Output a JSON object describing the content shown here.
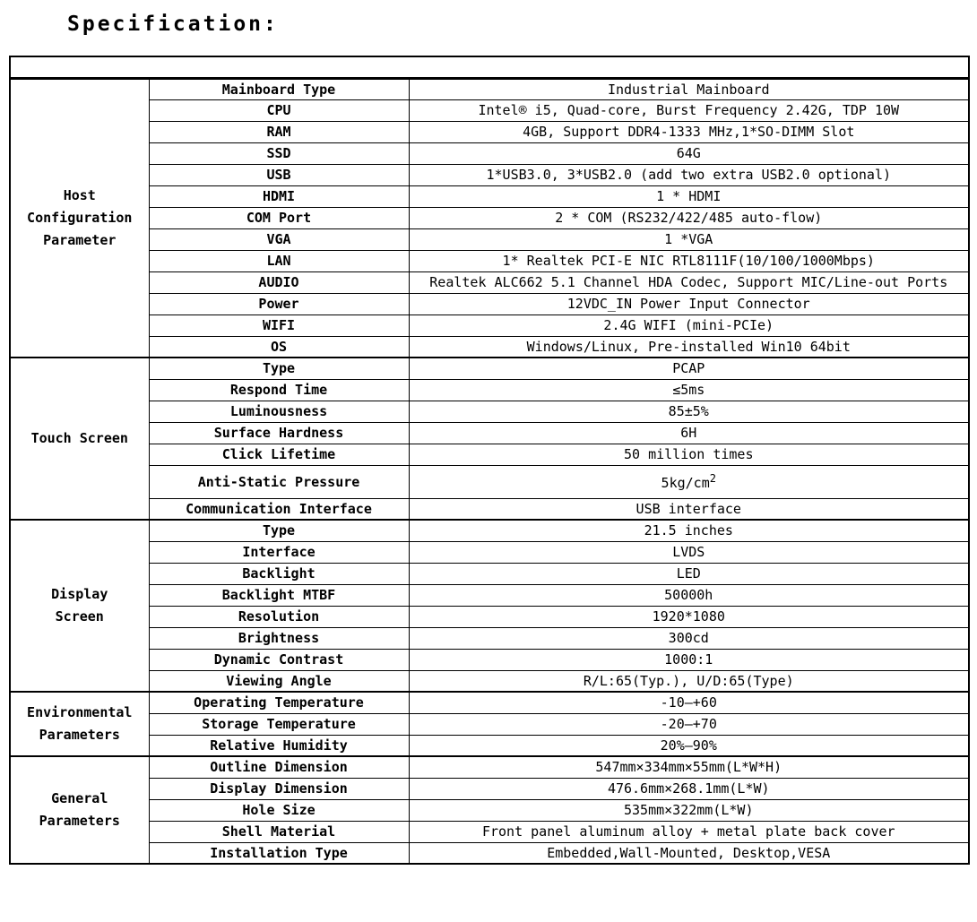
{
  "page_title": "Specification:",
  "table": {
    "sections": [
      {
        "category": "Host Configuration Parameter",
        "category_lines": [
          "Host",
          "Configuration",
          "Parameter"
        ],
        "rows": [
          {
            "param": "Mainboard Type",
            "value": "Industrial Mainboard"
          },
          {
            "param": "CPU",
            "value": "Intel® i5, Quad-core, Burst Frequency 2.42G, TDP 10W"
          },
          {
            "param": "RAM",
            "value": "4GB, Support DDR4-1333 MHz,1*SO-DIMM Slot"
          },
          {
            "param": "SSD",
            "value": "64G"
          },
          {
            "param": "USB",
            "value": "1*USB3.0, 3*USB2.0 (add two extra USB2.0 optional)"
          },
          {
            "param": "HDMI",
            "value": "1 * HDMI"
          },
          {
            "param": "COM Port",
            "value": "2 * COM (RS232/422/485 auto-flow)"
          },
          {
            "param": "VGA",
            "value": "1 *VGA"
          },
          {
            "param": "LAN",
            "value": "1* Realtek PCI-E NIC RTL8111F(10/100/1000Mbps)"
          },
          {
            "param": "AUDIO",
            "value": "Realtek ALC662 5.1 Channel HDA Codec, Support MIC/Line-out Ports"
          },
          {
            "param": "Power",
            "value": "12VDC_IN Power Input Connector"
          },
          {
            "param": "WIFI",
            "value": "2.4G WIFI (mini-PCIe)"
          },
          {
            "param": "OS",
            "value": "Windows/Linux, Pre-installed Win10 64bit"
          }
        ]
      },
      {
        "category": "Touch Screen",
        "category_lines": [
          "Touch Screen"
        ],
        "rows": [
          {
            "param": "Type",
            "value": "PCAP"
          },
          {
            "param": "Respond Time",
            "value": "≤5ms"
          },
          {
            "param": "Luminousness",
            "value": "85±5%"
          },
          {
            "param": "Surface Hardness",
            "value": "6H"
          },
          {
            "param": "Click Lifetime",
            "value": "50 million times"
          },
          {
            "param": "Anti-Static Pressure",
            "value": "5kg/cm",
            "value_sup": "2",
            "tall": true
          },
          {
            "param": "Communication Interface",
            "value": "USB interface"
          }
        ]
      },
      {
        "category": "Display Screen",
        "category_lines": [
          "Display",
          "Screen"
        ],
        "rows": [
          {
            "param": "Type",
            "value": "21.5 inches"
          },
          {
            "param": "Interface",
            "value": "LVDS"
          },
          {
            "param": "Backlight",
            "value": "LED"
          },
          {
            "param": "Backlight MTBF",
            "value": "50000h"
          },
          {
            "param": "Resolution",
            "value": "1920*1080"
          },
          {
            "param": "Brightness",
            "value": "300cd"
          },
          {
            "param": "Dynamic Contrast",
            "value": "1000:1"
          },
          {
            "param": "Viewing Angle",
            "value": "R/L:65(Typ.), U/D:65(Type)"
          }
        ]
      },
      {
        "category": "Environmental Parameters",
        "category_lines": [
          "Environmental",
          "Parameters"
        ],
        "rows": [
          {
            "param": "Operating Temperature",
            "value": "-10—+60"
          },
          {
            "param": "Storage Temperature",
            "value": "-20—+70"
          },
          {
            "param": "Relative Humidity",
            "value": "20%—90%"
          }
        ]
      },
      {
        "category": "General Parameters",
        "category_lines": [
          "General",
          "Parameters"
        ],
        "rows": [
          {
            "param": "Outline Dimension",
            "value": "547mm×334mm×55mm(L*W*H)"
          },
          {
            "param": "Display Dimension",
            "value": "476.6mm×268.1mm(L*W)"
          },
          {
            "param": "Hole Size",
            "value": "535mm×322mm(L*W)"
          },
          {
            "param": "Shell Material",
            "value": "Front panel aluminum alloy + metal plate back cover"
          },
          {
            "param": "Installation Type",
            "value": "Embedded,Wall-Mounted, Desktop,VESA"
          }
        ]
      }
    ]
  }
}
